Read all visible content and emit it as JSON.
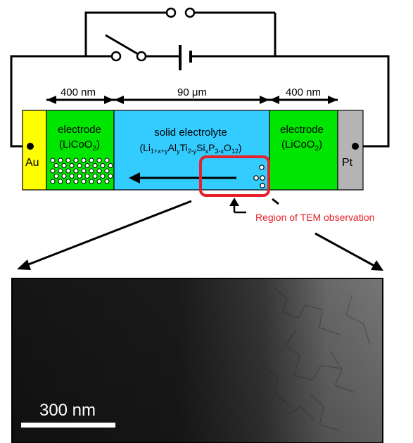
{
  "circuit": {
    "label_au": "Au",
    "label_pt": "Pt"
  },
  "dimensions": {
    "left_electrode": "400 nm",
    "electrolyte": "90 μm",
    "right_electrode": "400 nm"
  },
  "left_electrode": {
    "title": "electrode",
    "formula": "(LiCoO",
    "formula_sub": "2",
    "formula_end": ")"
  },
  "right_electrode": {
    "title": "electrode",
    "formula": "(LiCoO",
    "formula_sub": "2",
    "formula_end": ")"
  },
  "electrolyte": {
    "title": "solid electrolyte",
    "f_open": "(Li",
    "f_sub1": "1+x+y",
    "f_al": "Al",
    "f_sub2": "y",
    "f_ti": "Ti",
    "f_sub3": "2-y",
    "f_si": "Si",
    "f_sub4": "x",
    "f_p": "P",
    "f_sub5": "3-x",
    "f_o": "O",
    "f_sub6": "12",
    "f_close": ")"
  },
  "annotation": {
    "region": "Region of TEM observation"
  },
  "tem": {
    "scale_label": "300 nm"
  },
  "colors": {
    "au": "#ffff00",
    "electrode": "#00e600",
    "electrolyte": "#33ccff",
    "pt": "#b4b4b4",
    "highlight": "#e8202a"
  }
}
